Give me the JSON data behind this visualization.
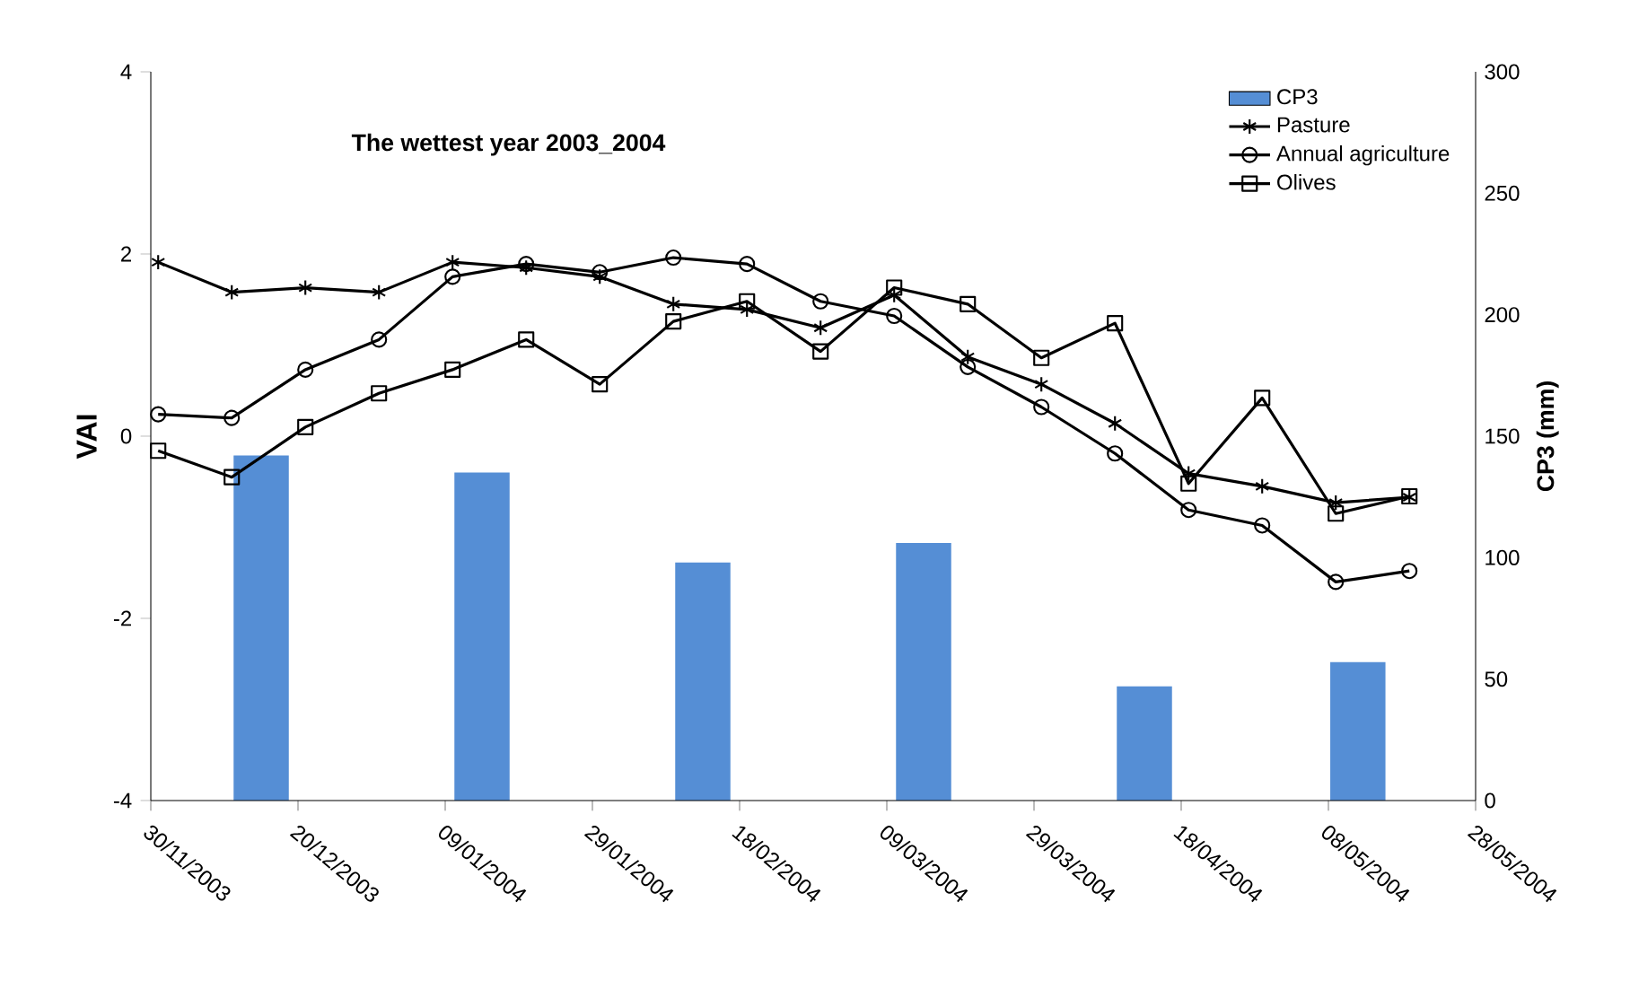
{
  "chart_data": {
    "type": "line",
    "title": "The wettest year 2003_2004",
    "ylabel": "VAI",
    "y2label": "CP3 (mm)",
    "xlim": [
      "2003-11-30",
      "2004-05-28"
    ],
    "xticks": [
      {
        "value": "2003-11-30",
        "label": "30/11/2003"
      },
      {
        "value": "2003-12-20",
        "label": "20/12/2003"
      },
      {
        "value": "2004-01-09",
        "label": "09/01/2004"
      },
      {
        "value": "2004-01-29",
        "label": "29/01/2004"
      },
      {
        "value": "2004-02-18",
        "label": "18/02/2004"
      },
      {
        "value": "2004-03-09",
        "label": "09/03/2004"
      },
      {
        "value": "2004-03-29",
        "label": "29/03/2004"
      },
      {
        "value": "2004-04-18",
        "label": "18/04/2004"
      },
      {
        "value": "2004-05-08",
        "label": "08/05/2004"
      },
      {
        "value": "2004-05-28",
        "label": "28/05/2004"
      }
    ],
    "ylim": [
      -4,
      4
    ],
    "yticks": [
      -4,
      -2,
      0,
      2,
      4
    ],
    "y2lim": [
      0,
      300
    ],
    "y2ticks": [
      0,
      50,
      100,
      150,
      200,
      250,
      300
    ],
    "legend": "top right",
    "grid": false,
    "x": [
      "2003-12-01",
      "2003-12-11",
      "2003-12-21",
      "2003-12-31",
      "2004-01-10",
      "2004-01-20",
      "2004-01-30",
      "2004-02-09",
      "2004-02-19",
      "2004-02-29",
      "2004-03-10",
      "2004-03-20",
      "2004-03-30",
      "2004-04-09",
      "2004-04-19",
      "2004-04-29",
      "2004-05-09",
      "2004-05-19"
    ],
    "series": [
      {
        "name": "CP3",
        "type": "bar",
        "axis": "y2",
        "color": "#558ed5",
        "x": [
          "2003-12-15",
          "2004-01-14",
          "2004-02-13",
          "2004-03-14",
          "2004-04-13",
          "2004-05-12"
        ],
        "values": [
          142,
          135,
          98,
          106,
          47,
          57
        ]
      },
      {
        "name": "Pasture",
        "color": "#000000",
        "marker": "cross",
        "values": [
          1.91,
          1.58,
          1.63,
          1.58,
          1.91,
          1.85,
          1.75,
          1.45,
          1.39,
          1.19,
          1.55,
          0.87,
          0.57,
          0.14,
          -0.41,
          -0.55,
          -0.73,
          -0.67
        ]
      },
      {
        "name": "Annual agriculture",
        "color": "#000000",
        "marker": "circle",
        "values": [
          0.24,
          0.2,
          0.73,
          1.06,
          1.75,
          1.89,
          1.8,
          1.96,
          1.89,
          1.48,
          1.32,
          0.76,
          0.32,
          -0.19,
          -0.81,
          -0.98,
          -1.6,
          -1.48
        ]
      },
      {
        "name": "Olives",
        "color": "#000000",
        "marker": "square",
        "values": [
          -0.16,
          -0.45,
          0.1,
          0.47,
          0.73,
          1.06,
          0.57,
          1.26,
          1.48,
          0.93,
          1.63,
          1.45,
          0.86,
          1.24,
          -0.52,
          0.42,
          -0.85,
          -0.66
        ]
      }
    ]
  }
}
